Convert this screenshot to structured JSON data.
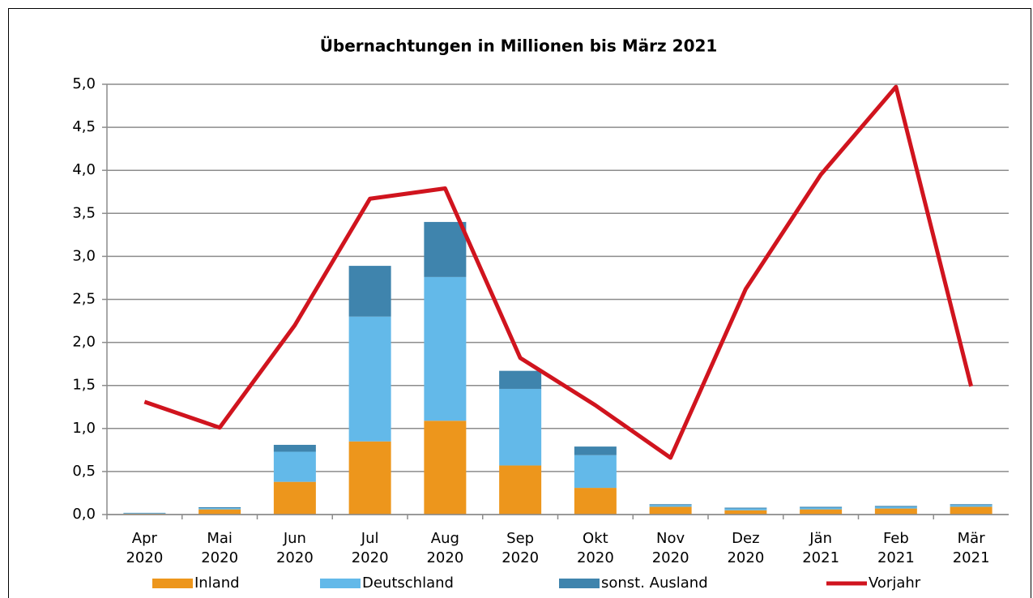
{
  "chart_data": {
    "type": "bar",
    "title": "Übernachtungen in Millionen bis März 2021",
    "categories": [
      "Apr 2020",
      "Mai 2020",
      "Jun 2020",
      "Jul 2020",
      "Aug 2020",
      "Sep 2020",
      "Okt 2020",
      "Nov 2020",
      "Dez 2020",
      "Jän 2021",
      "Feb 2021",
      "Mär 2021"
    ],
    "series": [
      {
        "name": "Inland",
        "color": "#ed961c",
        "values": [
          0.01,
          0.06,
          0.38,
          0.85,
          1.09,
          0.57,
          0.31,
          0.09,
          0.05,
          0.06,
          0.07,
          0.09
        ]
      },
      {
        "name": "Deutschland",
        "color": "#63b9e9",
        "values": [
          0.005,
          0.015,
          0.35,
          1.45,
          1.67,
          0.89,
          0.38,
          0.02,
          0.02,
          0.02,
          0.02,
          0.02
        ]
      },
      {
        "name": "sonst. Ausland",
        "color": "#3f84ad",
        "values": [
          0.005,
          0.01,
          0.08,
          0.59,
          0.64,
          0.21,
          0.1,
          0.01,
          0.01,
          0.01,
          0.01,
          0.01
        ]
      },
      {
        "name": "Vorjahr",
        "color": "#d0141e",
        "type": "line",
        "values": [
          1.31,
          1.01,
          2.2,
          3.67,
          3.79,
          1.82,
          1.27,
          0.66,
          2.62,
          3.95,
          4.97,
          1.49
        ]
      }
    ],
    "stacked": true,
    "ylim": [
      0,
      5
    ],
    "yticks": [
      {
        "value": 0,
        "label": "0,0"
      },
      {
        "value": 0.5,
        "label": "0,5"
      },
      {
        "value": 1,
        "label": "1,0"
      },
      {
        "value": 1.5,
        "label": "1,5"
      },
      {
        "value": 2,
        "label": "2,0"
      },
      {
        "value": 2.5,
        "label": "2,5"
      },
      {
        "value": 3,
        "label": "3,0"
      },
      {
        "value": 3.5,
        "label": "3,5"
      },
      {
        "value": 4,
        "label": "4,0"
      },
      {
        "value": 4.5,
        "label": "4,5"
      },
      {
        "value": 5,
        "label": "5,0"
      }
    ],
    "grid": true,
    "legend": "bottom"
  }
}
